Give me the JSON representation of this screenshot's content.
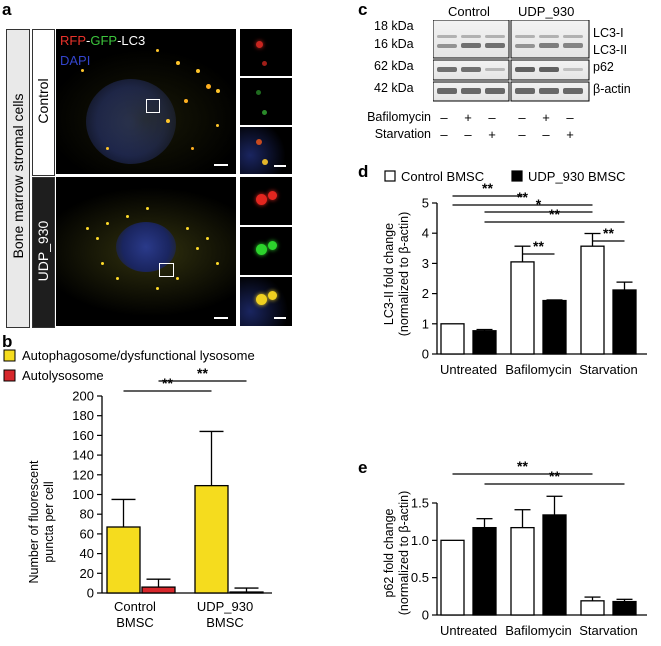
{
  "panels": {
    "a": "a",
    "b": "b",
    "c": "c",
    "d": "d",
    "e": "e"
  },
  "panel_a": {
    "side_label": "Bone marrow stromal cells",
    "rows": [
      "Control",
      "UDP_930"
    ],
    "stain_rfp": "RFP",
    "stain_dash1": "-",
    "stain_gfp": "GFP",
    "stain_lc3": "-LC3",
    "stain_dapi": "DAPI"
  },
  "panel_c": {
    "groups": [
      "Control",
      "UDP_930"
    ],
    "left_kda": [
      "18 kDa",
      "16 kDa",
      "62 kDa",
      "42 kDa"
    ],
    "right_labels": [
      "LC3-I",
      "LC3-II",
      "p62",
      "β-actin"
    ],
    "row_labels": [
      "Bafilomycin",
      "Starvation"
    ],
    "bafilomycin": [
      "–",
      "+",
      "–",
      "–",
      "+",
      "–"
    ],
    "starvation": [
      "–",
      "–",
      "+",
      "–",
      "–",
      "+"
    ]
  },
  "chart_data": [
    {
      "id": "b",
      "type": "bar",
      "categories": [
        "Control BMSC",
        "UDP_930 BMSC"
      ],
      "cat_line1": [
        "Control",
        "UDP_930"
      ],
      "cat_line2": [
        "BMSC",
        "BMSC"
      ],
      "series": [
        {
          "name": "Autophagosome/dysfunctional lysosome",
          "values": [
            67,
            109
          ],
          "errors": [
            28,
            55
          ],
          "color": "#f5dc1e"
        },
        {
          "name": "Autolysosome",
          "values": [
            6,
            1
          ],
          "errors": [
            8,
            4
          ],
          "color": "#d7272c"
        }
      ],
      "ylabel_line1": "Number of fluorescent",
      "ylabel_line2": "puncta per cell",
      "ylim": [
        0,
        200
      ],
      "yticks": [
        0,
        20,
        40,
        60,
        80,
        100,
        120,
        140,
        160,
        180,
        200
      ],
      "significance": [
        {
          "label": "**",
          "from": 0,
          "to": 2
        },
        {
          "label": "**",
          "from": 1,
          "to": 3
        }
      ]
    },
    {
      "id": "d",
      "type": "bar",
      "categories": [
        "Untreated",
        "Bafilomycin",
        "Starvation"
      ],
      "series": [
        {
          "name": "Control BMSC",
          "values": [
            1.0,
            3.05,
            3.57
          ],
          "errors": [
            0,
            0.52,
            0.42
          ],
          "color": "#ffffff"
        },
        {
          "name": "UDP_930 BMSC",
          "values": [
            0.77,
            1.77,
            2.12
          ],
          "errors": [
            0.04,
            0.02,
            0.26
          ],
          "color": "#000000"
        }
      ],
      "ylabel_line1": "LC3-II fold change",
      "ylabel_line2": "(normalized to  β-actin)",
      "ylim": [
        0,
        5
      ],
      "yticks": [
        0,
        1,
        2,
        3,
        4,
        5
      ],
      "significance": [
        {
          "label": "**",
          "from": 0,
          "to": 2
        },
        {
          "label": "**",
          "from": 0,
          "to": 4
        },
        {
          "label": "*",
          "from": 1,
          "to": 4
        },
        {
          "label": "**",
          "from": 1,
          "to": 5
        },
        {
          "label": "**",
          "from": 2,
          "to": 3
        },
        {
          "label": "**",
          "from": 4,
          "to": 5
        }
      ]
    },
    {
      "id": "e",
      "type": "bar",
      "categories": [
        "Untreated",
        "Bafilomycin",
        "Starvation"
      ],
      "series": [
        {
          "name": "Control BMSC",
          "values": [
            1.0,
            1.17,
            0.19
          ],
          "errors": [
            0,
            0.24,
            0.05
          ],
          "color": "#ffffff"
        },
        {
          "name": "UDP_930 BMSC",
          "values": [
            1.17,
            1.34,
            0.18
          ],
          "errors": [
            0.12,
            0.25,
            0.03
          ],
          "color": "#000000"
        }
      ],
      "ylabel_line1": "p62 fold change",
      "ylabel_line2": "(normalized to  β-actin)",
      "ylim": [
        0,
        1.5
      ],
      "yticks": [
        "0",
        "0.5",
        "1.0",
        "1.5"
      ],
      "significance": [
        {
          "label": "**",
          "from": 0,
          "to": 4
        },
        {
          "label": "**",
          "from": 1,
          "to": 5
        }
      ]
    }
  ],
  "legend_d": [
    "Control BMSC",
    "UDP_930 BMSC"
  ]
}
